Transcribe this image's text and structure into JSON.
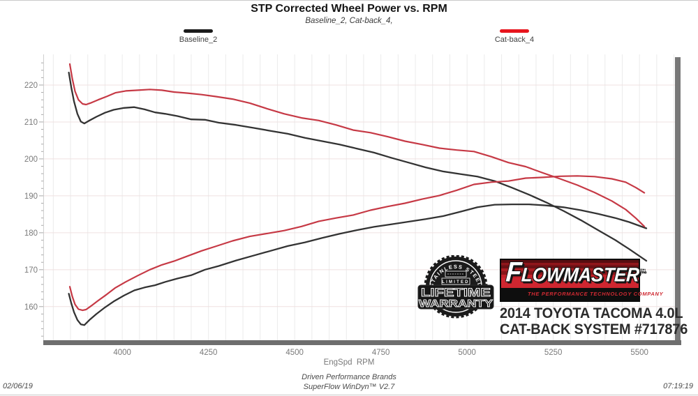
{
  "title": "STP Corrected Wheel Power vs. RPM",
  "subtitle": "Baseline_2, Cat-back_4,",
  "legend": [
    {
      "label": "Baseline_2",
      "color": "#1a1a1a"
    },
    {
      "label": "Cat-back_4",
      "color": "#e8151d"
    }
  ],
  "footer": {
    "date": "02/06/19",
    "time": "07:19:19",
    "brand_line": "Driven Performance Brands",
    "software_line": "SuperFlow WinDyn™ V2.7"
  },
  "overlay": {
    "warranty_badge": {
      "arc_text": "STAINLESS STEEL",
      "banner": "LIMITED",
      "line1": "LIFETIME",
      "line2": "WARRANTY"
    },
    "logo": {
      "brand": "LOWMASTER",
      "brand_initial": "F",
      "tm": "™",
      "tagline": "THE PERFORMANCE TECHNOLOGY COMPANY",
      "red": "#cf2630"
    },
    "vehicle_line1": "2014 TOYOTA TACOMA 4.0L",
    "vehicle_line2": "CAT-BACK SYSTEM #717876"
  },
  "chart_data": {
    "type": "line",
    "title": "STP Corrected Wheel Power vs. RPM",
    "xlabel": "EngSpd  RPM",
    "ylabel": "",
    "xlim": [
      3771,
      5611
    ],
    "ylim": [
      150.9,
      228.3
    ],
    "x_ticks": [
      4000,
      4250,
      4500,
      4750,
      5000,
      5250,
      5500
    ],
    "y_ticks": [
      160,
      170,
      180,
      190,
      200,
      210,
      220
    ],
    "grid": true,
    "minor_x_grid_step": 50,
    "legend_position": "top",
    "series": [
      {
        "name": "Baseline_2 torque",
        "color": "#333333",
        "width": 2.3,
        "points": [
          [
            3845,
            223.4
          ],
          [
            3852,
            219.5
          ],
          [
            3860,
            215.6
          ],
          [
            3870,
            212.2
          ],
          [
            3880,
            210.1
          ],
          [
            3890,
            209.6
          ],
          [
            3905,
            210.4
          ],
          [
            3925,
            211.4
          ],
          [
            3950,
            212.5
          ],
          [
            3975,
            213.3
          ],
          [
            4005,
            213.8
          ],
          [
            4035,
            214.0
          ],
          [
            4065,
            213.4
          ],
          [
            4095,
            212.6
          ],
          [
            4125,
            212.2
          ],
          [
            4160,
            211.6
          ],
          [
            4200,
            210.7
          ],
          [
            4240,
            210.6
          ],
          [
            4280,
            209.8
          ],
          [
            4330,
            209.2
          ],
          [
            4380,
            208.4
          ],
          [
            4430,
            207.6
          ],
          [
            4480,
            206.8
          ],
          [
            4530,
            205.7
          ],
          [
            4580,
            204.8
          ],
          [
            4630,
            203.9
          ],
          [
            4680,
            202.8
          ],
          [
            4730,
            201.7
          ],
          [
            4780,
            200.3
          ],
          [
            4830,
            199.0
          ],
          [
            4880,
            197.7
          ],
          [
            4930,
            196.6
          ],
          [
            4980,
            195.9
          ],
          [
            5030,
            195.2
          ],
          [
            5080,
            194.0
          ],
          [
            5130,
            192.2
          ],
          [
            5180,
            190.3
          ],
          [
            5230,
            188.2
          ],
          [
            5280,
            185.9
          ],
          [
            5330,
            183.4
          ],
          [
            5380,
            180.7
          ],
          [
            5430,
            178.0
          ],
          [
            5470,
            175.6
          ],
          [
            5520,
            172.4
          ]
        ]
      },
      {
        "name": "Baseline_2 power",
        "color": "#333333",
        "width": 2.3,
        "points": [
          [
            3845,
            163.5
          ],
          [
            3852,
            161.0
          ],
          [
            3860,
            158.5
          ],
          [
            3870,
            156.4
          ],
          [
            3880,
            155.2
          ],
          [
            3890,
            155.0
          ],
          [
            3905,
            156.4
          ],
          [
            3925,
            158.0
          ],
          [
            3950,
            159.8
          ],
          [
            3975,
            161.4
          ],
          [
            4005,
            163.0
          ],
          [
            4035,
            164.4
          ],
          [
            4065,
            165.2
          ],
          [
            4095,
            165.8
          ],
          [
            4125,
            166.7
          ],
          [
            4160,
            167.6
          ],
          [
            4200,
            168.5
          ],
          [
            4240,
            170.0
          ],
          [
            4280,
            171.0
          ],
          [
            4330,
            172.5
          ],
          [
            4380,
            173.8
          ],
          [
            4430,
            175.1
          ],
          [
            4480,
            176.4
          ],
          [
            4530,
            177.4
          ],
          [
            4580,
            178.6
          ],
          [
            4630,
            179.7
          ],
          [
            4680,
            180.7
          ],
          [
            4730,
            181.6
          ],
          [
            4780,
            182.3
          ],
          [
            4830,
            183.0
          ],
          [
            4880,
            183.7
          ],
          [
            4930,
            184.5
          ],
          [
            4980,
            185.7
          ],
          [
            5030,
            186.9
          ],
          [
            5080,
            187.6
          ],
          [
            5130,
            187.7
          ],
          [
            5180,
            187.7
          ],
          [
            5230,
            187.4
          ],
          [
            5280,
            186.9
          ],
          [
            5330,
            186.1
          ],
          [
            5380,
            185.1
          ],
          [
            5430,
            184.0
          ],
          [
            5470,
            182.9
          ],
          [
            5520,
            181.2
          ]
        ]
      },
      {
        "name": "Cat-back_4 torque",
        "color": "#c63945",
        "width": 2.2,
        "points": [
          [
            3848,
            225.7
          ],
          [
            3855,
            221.8
          ],
          [
            3863,
            218.3
          ],
          [
            3873,
            216.0
          ],
          [
            3885,
            214.9
          ],
          [
            3895,
            214.7
          ],
          [
            3910,
            215.2
          ],
          [
            3930,
            216.0
          ],
          [
            3955,
            216.9
          ],
          [
            3980,
            217.9
          ],
          [
            4010,
            218.4
          ],
          [
            4045,
            218.6
          ],
          [
            4080,
            218.8
          ],
          [
            4115,
            218.6
          ],
          [
            4150,
            218.1
          ],
          [
            4190,
            217.8
          ],
          [
            4230,
            217.4
          ],
          [
            4270,
            216.9
          ],
          [
            4320,
            216.2
          ],
          [
            4370,
            215.1
          ],
          [
            4420,
            213.6
          ],
          [
            4470,
            212.2
          ],
          [
            4520,
            211.1
          ],
          [
            4570,
            210.4
          ],
          [
            4620,
            209.2
          ],
          [
            4670,
            207.8
          ],
          [
            4720,
            207.1
          ],
          [
            4770,
            206.0
          ],
          [
            4820,
            204.8
          ],
          [
            4870,
            203.9
          ],
          [
            4920,
            202.9
          ],
          [
            4970,
            202.4
          ],
          [
            5020,
            202.0
          ],
          [
            5070,
            200.6
          ],
          [
            5120,
            199.0
          ],
          [
            5170,
            197.9
          ],
          [
            5220,
            196.2
          ],
          [
            5270,
            194.6
          ],
          [
            5320,
            192.9
          ],
          [
            5370,
            190.9
          ],
          [
            5420,
            188.6
          ],
          [
            5460,
            186.3
          ],
          [
            5490,
            183.9
          ],
          [
            5514,
            181.7
          ]
        ]
      },
      {
        "name": "Cat-back_4 power",
        "color": "#c63945",
        "width": 2.2,
        "points": [
          [
            3848,
            165.4
          ],
          [
            3855,
            162.8
          ],
          [
            3863,
            160.6
          ],
          [
            3873,
            159.3
          ],
          [
            3885,
            159.0
          ],
          [
            3895,
            159.2
          ],
          [
            3910,
            160.2
          ],
          [
            3930,
            161.6
          ],
          [
            3955,
            163.3
          ],
          [
            3980,
            165.1
          ],
          [
            4010,
            166.7
          ],
          [
            4045,
            168.4
          ],
          [
            4080,
            170.0
          ],
          [
            4115,
            171.3
          ],
          [
            4150,
            172.3
          ],
          [
            4190,
            173.7
          ],
          [
            4230,
            175.1
          ],
          [
            4270,
            176.3
          ],
          [
            4320,
            177.8
          ],
          [
            4370,
            179.0
          ],
          [
            4420,
            179.8
          ],
          [
            4470,
            180.6
          ],
          [
            4520,
            181.7
          ],
          [
            4570,
            183.1
          ],
          [
            4620,
            184.0
          ],
          [
            4670,
            184.8
          ],
          [
            4720,
            186.1
          ],
          [
            4770,
            187.1
          ],
          [
            4820,
            188.0
          ],
          [
            4870,
            189.1
          ],
          [
            4920,
            190.1
          ],
          [
            4970,
            191.5
          ],
          [
            5020,
            193.1
          ],
          [
            5070,
            193.7
          ],
          [
            5120,
            194.0
          ],
          [
            5170,
            194.8
          ],
          [
            5220,
            195.0
          ],
          [
            5270,
            195.3
          ],
          [
            5320,
            195.4
          ],
          [
            5370,
            195.2
          ],
          [
            5420,
            194.6
          ],
          [
            5460,
            193.7
          ],
          [
            5490,
            192.2
          ],
          [
            5514,
            190.8
          ]
        ]
      }
    ]
  }
}
